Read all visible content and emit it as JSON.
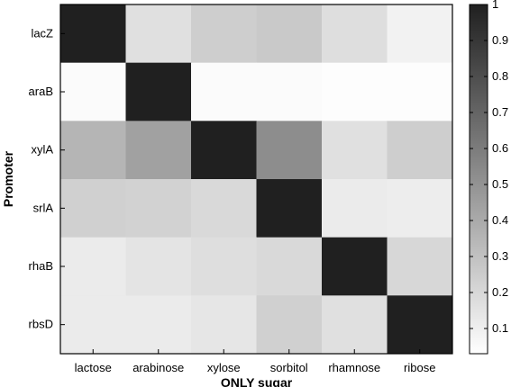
{
  "chart_data": {
    "type": "heatmap",
    "title": "",
    "xlabel": "ONLY sugar",
    "ylabel": "Promoter",
    "x_categories": [
      "lactose",
      "arabinose",
      "xylose",
      "sorbitol",
      "rhamnose",
      "ribose"
    ],
    "y_categories": [
      "lacZ",
      "araB",
      "xylA",
      "srlA",
      "rhaB",
      "rbsD"
    ],
    "values": [
      [
        1.0,
        0.14,
        0.22,
        0.24,
        0.15,
        0.06
      ],
      [
        0.02,
        1.0,
        0.02,
        0.02,
        0.01,
        0.01
      ],
      [
        0.33,
        0.42,
        1.0,
        0.51,
        0.14,
        0.22
      ],
      [
        0.21,
        0.2,
        0.17,
        1.0,
        0.09,
        0.08
      ],
      [
        0.09,
        0.12,
        0.15,
        0.17,
        1.0,
        0.18
      ],
      [
        0.09,
        0.09,
        0.11,
        0.21,
        0.14,
        1.0
      ]
    ],
    "colorscale": "gray (low = white, high = black)",
    "colorbar": {
      "range": [
        0.03,
        1.0
      ],
      "ticks": [
        "0.1",
        "0.2",
        "0.3",
        "0.4",
        "0.5",
        "0.6",
        "0.7",
        "0.8",
        "0.9",
        "1"
      ]
    }
  }
}
